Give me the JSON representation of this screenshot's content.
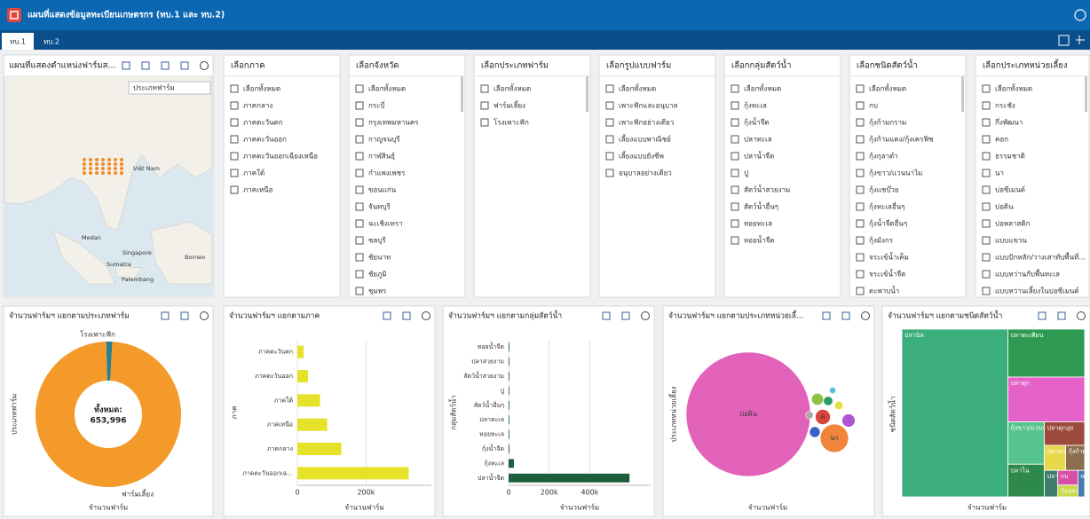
{
  "header": {
    "title": "แผนที่แสดงข้อมูลทะเบียนเกษตรกร (ทบ.1 และ ทบ.2)"
  },
  "tabs": [
    "ทบ.1",
    "ทบ.2"
  ],
  "map": {
    "title": "แผนที่แสดงตำแหน่งฟาร์มส...",
    "legend_title": "ประเภทฟาร์ม",
    "place_labels": [
      "Việt Nam",
      "Medan",
      "Singapore",
      "Sumatra",
      "Palembang",
      "Borneo"
    ]
  },
  "filters": [
    {
      "title": "เลือกภาค",
      "options": [
        "เลือกทั้งหมด",
        "ภาคกลาง",
        "ภาคตะวันตก",
        "ภาคตะวันออก",
        "ภาคตะวันออกเฉียงเหนือ",
        "ภาคใต้",
        "ภาคเหนือ"
      ]
    },
    {
      "title": "เลือกจังหวัด",
      "options": [
        "เลือกทั้งหมด",
        "กระบี่",
        "กรุงเทพมหานคร",
        "กาญจนบุรี",
        "กาฬสินธุ์",
        "กำแพงเพชร",
        "ขอนแก่น",
        "จันทบุรี",
        "ฉะเชิงเทรา",
        "ชลบุรี",
        "ชัยนาท",
        "ชัยภูมิ",
        "ชุมพร"
      ]
    },
    {
      "title": "เลือกประเภทฟาร์ม",
      "options": [
        "เลือกทั้งหมด",
        "ฟาร์มเลี้ยง",
        "โรงเพาะฟัก"
      ]
    },
    {
      "title": "เลือกรูปแบบฟาร์ม",
      "options": [
        "เลือกทั้งหมด",
        "เพาะฟักและอนุบาล",
        "เพาะฟักอย่างเดียว",
        "เลี้ยงแบบพาณิชย์",
        "เลี้ยงแบบยังชีพ",
        "อนุบาลอย่างเดียว"
      ]
    },
    {
      "title": "เลือกกลุ่มสัตว์น้ำ",
      "options": [
        "เลือกทั้งหมด",
        "กุ้งทะเล",
        "กุ้งน้ำจืด",
        "ปลาทะเล",
        "ปลาน้ำจืด",
        "ปู",
        "สัตว์น้ำสวยงาม",
        "สัตว์น้ำอื่นๆ",
        "หอยทะเล",
        "หอยน้ำจืด"
      ]
    },
    {
      "title": "เลือกชนิดสัตว์น้ำ",
      "options": [
        "เลือกทั้งหมด",
        "กบ",
        "กุ้งก้ามกราม",
        "กุ้งก้ามแดง/กุ้งเครฟิช",
        "กุ้งกุลาดำ",
        "กุ้งขาว/แวนนาไม",
        "กุ้งแชบ๊วย",
        "กุ้งทะเลอื่นๆ",
        "กุ้งน้ำจืดอื่นๆ",
        "กุ้งมังกร",
        "จระเข้น้ำเค็ม",
        "จระเข้น้ำจืด",
        "ตะพาบน้ำ"
      ]
    },
    {
      "title": "เลือกประเภทหน่วยเลี้ยง",
      "options": [
        "เลือกทั้งหมด",
        "กระชัง",
        "กึ่งพัฒนา",
        "คอก",
        "ธรรมชาติ",
        "นา",
        "บ่อซีเมนต์",
        "บ่อดิน",
        "บ่อพลาสติก",
        "แบบแขวน",
        "แบบปักหลัก/วางเสาทับพื้นที่...",
        "แบบหว่านกับพื้นทะเล",
        "แบบหว่านเลี้ยงในบ่อซีเมนต์"
      ]
    }
  ],
  "chart_data": [
    {
      "type": "pie",
      "title": "จำนวนฟาร์มฯ แยกตามประเภทฟาร์ม",
      "categories": [
        "โรงเพาะฟัก",
        "ฟาร์มเลี้ยง"
      ],
      "values": [
        9000,
        644996
      ],
      "colors": [
        "#2b7f8e",
        "#f39a2b"
      ],
      "center_text": [
        "ทั้งหมด:",
        "653,996"
      ],
      "xlabel": "จำนวนฟาร์ม",
      "ylabel": "ประเภทฟาร์ม"
    },
    {
      "type": "bar",
      "title": "จำนวนฟาร์มฯ แยกตามภาค",
      "categories": [
        "ภาคตะวันตก",
        "ภาคตะวันออก",
        "ภาคใต้",
        "ภาคเหนือ",
        "ภาคกลาง",
        "ภาคตะวันออกเฉ..."
      ],
      "values": [
        18000,
        31000,
        66000,
        87000,
        128000,
        324000
      ],
      "color": "#e6e229",
      "xlim": [
        0,
        390000
      ],
      "xticks": [
        0,
        {
          "value": 200000,
          "label": "200k"
        }
      ],
      "grid": true,
      "xlabel": "จำนวนฟาร์ม",
      "ylabel": "ภาค"
    },
    {
      "type": "bar",
      "title": "จำนวนฟาร์มฯ แยกตามกลุ่มสัตว์น้ำ",
      "categories": [
        "หอยน้ำจืด",
        "ปลาสวยงาม",
        "สัตว์น้ำสวยงาม",
        "ปู",
        "สัตว์น้ำอื่นๆ",
        "ปลาทะเล",
        "หอยทะเล",
        "กุ้งน้ำจืด",
        "กุ้งทะเล",
        "ปลาน้ำจืด"
      ],
      "values": [
        1000,
        1500,
        2000,
        2500,
        3000,
        3000,
        3500,
        4000,
        26000,
        596000
      ],
      "color": "#1d5e3c",
      "xlim": [
        0,
        700000
      ],
      "xticks": [
        0,
        {
          "value": 200000,
          "label": "200k"
        },
        {
          "value": 400000,
          "label": "400k"
        }
      ],
      "grid": true,
      "xlabel": "จำนวนฟาร์ม",
      "ylabel": "กลุ่มสัตว์น้ำ"
    },
    {
      "type": "bubble",
      "title": "จำนวนฟาร์มฯ แยกตามประเภทหน่วยเลี้...",
      "categories": [
        "บ่อดิน",
        "นา",
        "ค",
        null,
        null,
        null,
        null,
        null,
        null,
        null
      ],
      "values": [
        540000,
        28000,
        8000,
        6000,
        5000,
        4000,
        3000,
        2500,
        2000,
        1500
      ],
      "colors": [
        "#e262ba",
        "#f0843a",
        "#d8453f",
        "#b055d2",
        "#8cc342",
        "#3a62c4",
        "#2a9b6a",
        "#e3e046",
        "#a8a8a8",
        "#5cc0e2"
      ],
      "xlabel": "จำนวนฟาร์ม",
      "ylabel": "ประเภทหน่วยเลี้ยง"
    },
    {
      "type": "treemap",
      "title": "จำนวนฟาร์มฯ แยกตามชนิดสัตว์น้ำ",
      "categories": [
        "ปลานิล",
        "ปลาตะเพียน",
        "ปลาดุก",
        "กุ้งขาว/แวนนาไม",
        "ปลาไน",
        "ปลาดุกอุย",
        "ปลาสวาย",
        "กุ้งก้ามกราม",
        "ปลาหมอ",
        "กบ",
        "กุ้งกุลาดำ",
        "หอยแครง"
      ],
      "values": [
        300000,
        62000,
        58000,
        26000,
        20000,
        16000,
        9000,
        8000,
        6000,
        5000,
        4000,
        3000
      ],
      "colors": [
        "#3cae7c",
        "#2f9a52",
        "#e563c9",
        "#58c48d",
        "#2d8a4c",
        "#9b4a3c",
        "#e8d94a",
        "#8a6e4e",
        "#3f7c6c",
        "#d84fa8",
        "#c9d94a",
        "#4a7ab0"
      ],
      "xlabel": "จำนวนฟาร์ม",
      "ylabel": "ชนิดสัตว์น้ำ"
    }
  ]
}
